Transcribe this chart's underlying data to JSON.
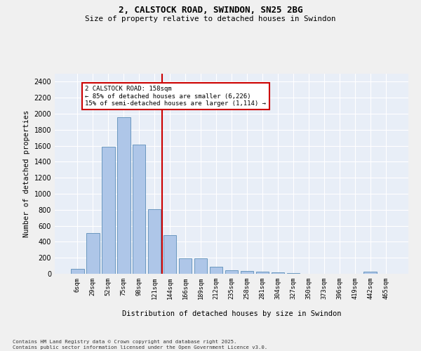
{
  "title1": "2, CALSTOCK ROAD, SWINDON, SN25 2BG",
  "title2": "Size of property relative to detached houses in Swindon",
  "xlabel": "Distribution of detached houses by size in Swindon",
  "ylabel": "Number of detached properties",
  "categories": [
    "6sqm",
    "29sqm",
    "52sqm",
    "75sqm",
    "98sqm",
    "121sqm",
    "144sqm",
    "166sqm",
    "189sqm",
    "212sqm",
    "235sqm",
    "258sqm",
    "281sqm",
    "304sqm",
    "327sqm",
    "350sqm",
    "373sqm",
    "396sqm",
    "419sqm",
    "442sqm",
    "465sqm"
  ],
  "values": [
    60,
    510,
    1590,
    1960,
    1610,
    810,
    480,
    195,
    190,
    90,
    40,
    35,
    25,
    15,
    5,
    0,
    0,
    0,
    0,
    25,
    0
  ],
  "bar_color": "#aec6e8",
  "bar_edge_color": "#5b8db8",
  "marker_color": "#cc0000",
  "annotation_line1": "2 CALSTOCK ROAD: 158sqm",
  "annotation_line2": "← 85% of detached houses are smaller (6,226)",
  "annotation_line3": "15% of semi-detached houses are larger (1,114) →",
  "annotation_box_color": "#cc0000",
  "background_color": "#e8eef7",
  "grid_color": "#ffffff",
  "footnote1": "Contains HM Land Registry data © Crown copyright and database right 2025.",
  "footnote2": "Contains public sector information licensed under the Open Government Licence v3.0.",
  "ylim": [
    0,
    2500
  ],
  "yticks": [
    0,
    200,
    400,
    600,
    800,
    1000,
    1200,
    1400,
    1600,
    1800,
    2000,
    2200,
    2400
  ],
  "fig_width": 6.0,
  "fig_height": 5.0,
  "dpi": 100
}
